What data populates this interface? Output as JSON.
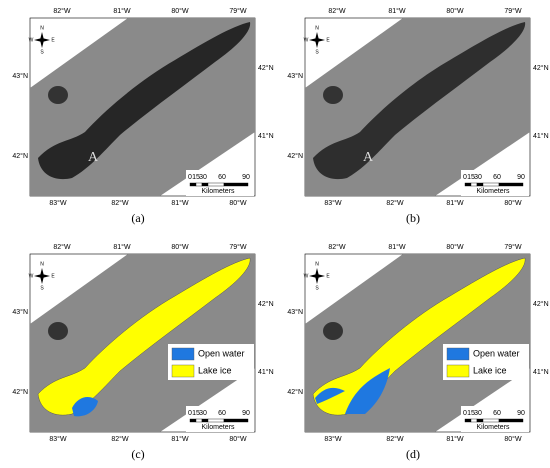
{
  "panels": [
    {
      "label": "(a)",
      "lon_top": [
        "82°W",
        "81°W",
        "80°W",
        "79°W"
      ],
      "lon_bottom": [
        "83°W",
        "82°W",
        "81°W",
        "80°W"
      ],
      "lat_left": [
        "43°N",
        "42°N"
      ],
      "lat_right": [
        "42°N",
        "41°N"
      ],
      "compass": [
        "N",
        "E",
        "S",
        "W"
      ],
      "marker": "A",
      "scale": [
        "0",
        "15",
        "30",
        "60",
        "90"
      ],
      "scale_unit": "Kilometers"
    },
    {
      "label": "(b)",
      "lon_top": [
        "82°W",
        "81°W",
        "80°W",
        "79°W"
      ],
      "lon_bottom": [
        "83°W",
        "82°W",
        "81°W",
        "80°W"
      ],
      "lat_left": [
        "43°N",
        "42°N"
      ],
      "lat_right": [
        "42°N",
        "41°N"
      ],
      "compass": [
        "N",
        "E",
        "S",
        "W"
      ],
      "marker": "A",
      "scale": [
        "0",
        "15",
        "30",
        "60",
        "90"
      ],
      "scale_unit": "Kilometers"
    },
    {
      "label": "(c)",
      "lon_top": [
        "82°W",
        "81°W",
        "80°W",
        "79°W"
      ],
      "lon_bottom": [
        "83°W",
        "82°W",
        "81°W",
        "80°W"
      ],
      "lat_left": [
        "43°N",
        "42°N"
      ],
      "lat_right": [
        "42°N",
        "41°N"
      ],
      "compass": [
        "N",
        "E",
        "S",
        "W"
      ],
      "legend": [
        "Open water",
        "Lake ice"
      ],
      "scale": [
        "0",
        "15",
        "30",
        "60",
        "90"
      ],
      "scale_unit": "Kilometers"
    },
    {
      "label": "(d)",
      "lon_top": [
        "82°W",
        "81°W",
        "80°W",
        "79°W"
      ],
      "lon_bottom": [
        "83°W",
        "82°W",
        "81°W",
        "80°W"
      ],
      "lat_left": [
        "43°N",
        "42°N"
      ],
      "lat_right": [
        "42°N",
        "41°N"
      ],
      "compass": [
        "N",
        "E",
        "S",
        "W"
      ],
      "legend": [
        "Open water",
        "Lake ice"
      ],
      "scale": [
        "0",
        "15",
        "30",
        "60",
        "90"
      ],
      "scale_unit": "Kilometers"
    }
  ]
}
